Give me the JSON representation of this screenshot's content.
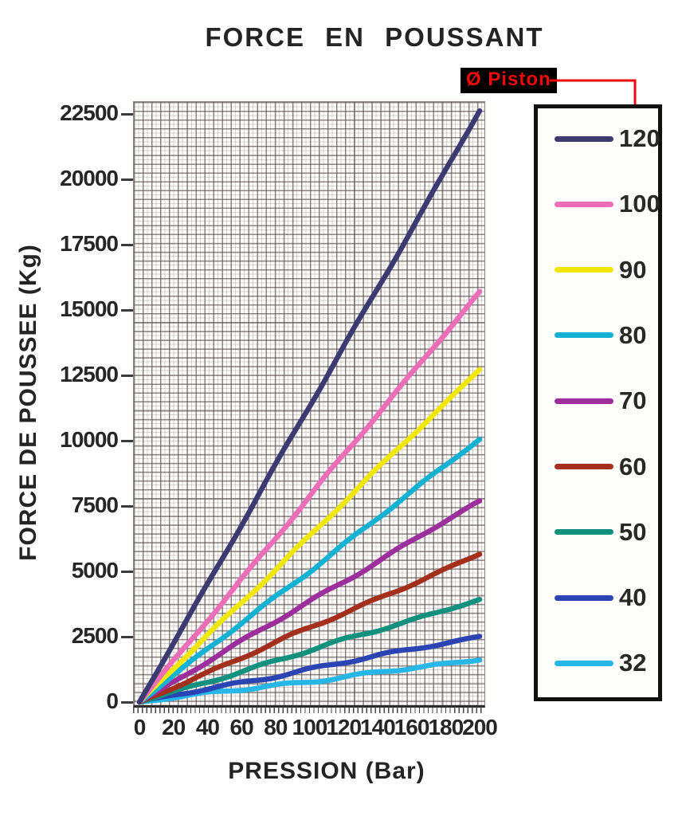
{
  "annotation": {
    "label": "Ø Piston",
    "color": "#ee0a0a",
    "chip_background": "#000000"
  },
  "chart_data": {
    "type": "line",
    "title": "FORCE EN POUSSANT",
    "xlabel": "PRESSION (Bar)",
    "ylabel": "FORCE DE POUSSEE (Kg)",
    "x": [
      0,
      20,
      40,
      60,
      80,
      100,
      120,
      140,
      160,
      180,
      200
    ],
    "y_ticks": [
      0,
      2500,
      5000,
      7500,
      10000,
      12500,
      15000,
      17500,
      20000,
      22500
    ],
    "xlim": [
      0,
      200
    ],
    "ylim": [
      0,
      23000
    ],
    "grid": "graph-paper",
    "legend_title": "Ø Piston",
    "legend_position": "right-box",
    "series": [
      {
        "name": "120",
        "color": "#3b3b72",
        "values": [
          0,
          2262,
          4524,
          6786,
          9048,
          11310,
          13572,
          15834,
          18096,
          20357,
          22619
        ]
      },
      {
        "name": "100",
        "color": "#ec6eb9",
        "values": [
          0,
          1571,
          3142,
          4712,
          6283,
          7854,
          9425,
          10996,
          12566,
          14137,
          15708
        ]
      },
      {
        "name": "90",
        "color": "#f0e607",
        "values": [
          0,
          1272,
          2545,
          3817,
          5089,
          6362,
          7634,
          8906,
          10179,
          11451,
          12723
        ]
      },
      {
        "name": "80",
        "color": "#14b2d2",
        "values": [
          0,
          1005,
          2011,
          3016,
          4021,
          5027,
          6032,
          7037,
          8042,
          9048,
          10053
        ]
      },
      {
        "name": "70",
        "color": "#9c2f9b",
        "values": [
          0,
          770,
          1539,
          2309,
          3079,
          3848,
          4618,
          5388,
          6158,
          6927,
          7697
        ]
      },
      {
        "name": "60",
        "color": "#a52f1d",
        "values": [
          0,
          565,
          1131,
          1696,
          2262,
          2827,
          3393,
          3958,
          4524,
          5089,
          5655
        ]
      },
      {
        "name": "50",
        "color": "#12917f",
        "values": [
          0,
          393,
          785,
          1178,
          1571,
          1963,
          2356,
          2749,
          3142,
          3534,
          3927
        ]
      },
      {
        "name": "40",
        "color": "#2b44b4",
        "values": [
          0,
          251,
          503,
          754,
          1005,
          1257,
          1508,
          1759,
          2011,
          2262,
          2513
        ]
      },
      {
        "name": "32",
        "color": "#27b6e8",
        "values": [
          0,
          161,
          322,
          483,
          643,
          804,
          965,
          1126,
          1287,
          1447,
          1608
        ]
      }
    ]
  }
}
